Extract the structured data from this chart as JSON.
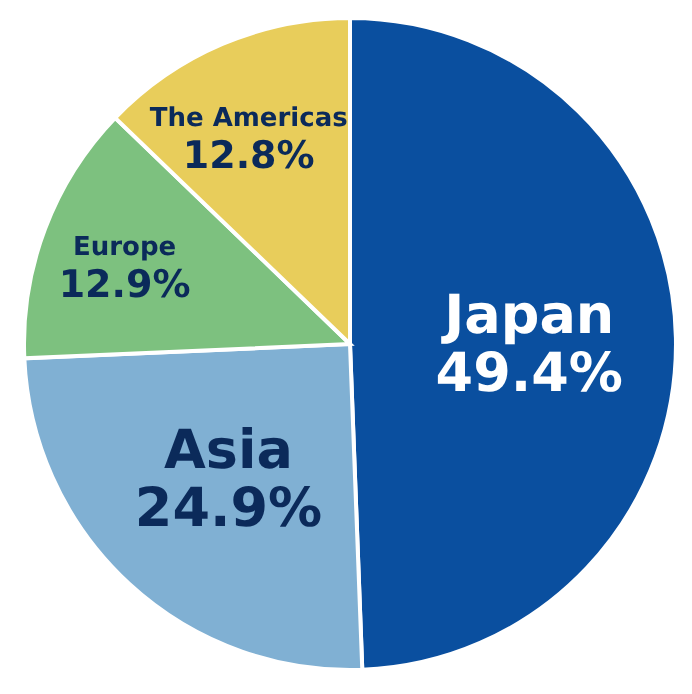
{
  "chart_data": {
    "type": "pie",
    "categories": [
      "Japan",
      "Asia",
      "Europe",
      "The Americas"
    ],
    "values": [
      49.4,
      24.9,
      12.9,
      12.8
    ],
    "value_labels": [
      "49.4%",
      "24.9%",
      "12.9%",
      "12.8%"
    ],
    "colors": [
      "#0a4f9f",
      "#80b0d3",
      "#7dc17f",
      "#e8cd5b"
    ]
  }
}
